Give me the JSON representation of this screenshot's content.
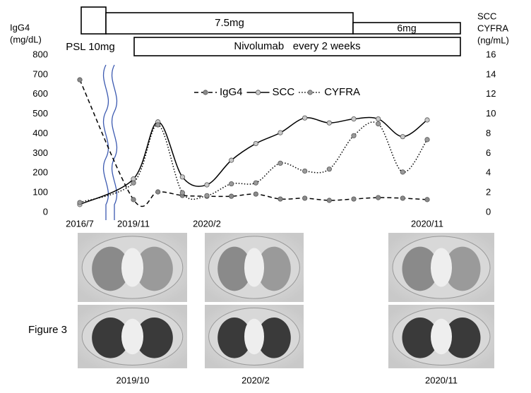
{
  "chart_data": {
    "type": "line",
    "y_label": [
      "IgG4",
      "(mg/dL)"
    ],
    "y2_label": [
      "SCC",
      "CYFRA",
      "(ng/mL)"
    ],
    "categories": [
      "2016/7",
      "2019/11",
      null,
      null,
      "2020/2",
      null,
      null,
      null,
      null,
      null,
      null,
      null,
      null,
      "2020/11"
    ],
    "series": [
      {
        "name": "IgG4",
        "color": "#000000",
        "marker_color": "#8a8a8a",
        "line_style": "dashed",
        "values": [
          674,
          65,
          104,
          86,
          82,
          82,
          93,
          68,
          72,
          61,
          68,
          75,
          72,
          65
        ]
      },
      {
        "name": "SCC",
        "color": "#000000",
        "marker_color": "#c8c8c8",
        "line_style": "solid",
        "axis": "y2",
        "values": [
          0.8,
          3.4,
          9.2,
          3.6,
          2.8,
          5.3,
          7.0,
          8.1,
          9.6,
          9.1,
          9.5,
          9.5,
          7.7,
          9.4
        ]
      },
      {
        "name": "CYFRA",
        "color": "#000000",
        "marker_color": "#9a9a9a",
        "line_style": "dotted",
        "axis": "y2",
        "values": [
          1.0,
          3.0,
          8.9,
          2.0,
          1.7,
          2.9,
          3.0,
          5.0,
          4.2,
          4.4,
          7.8,
          9.0,
          4.1,
          7.4
        ]
      }
    ],
    "ylim": [
      0,
      800
    ],
    "yticks": [
      0,
      100,
      200,
      300,
      400,
      500,
      600,
      700,
      800
    ],
    "y2lim": [
      0,
      16
    ],
    "y2ticks": [
      0,
      2,
      4,
      6,
      8,
      10,
      12,
      14,
      16
    ],
    "grid": false
  },
  "timeline": {
    "psl": "PSL 10mg",
    "doses": [
      "7.5mg",
      "6mg"
    ],
    "nivolumab": "Nivolumab   every 2 weeks"
  },
  "ct_scans": [
    "2019/10",
    "2020/2",
    "2020/11"
  ],
  "figure_label": "Figure 3"
}
